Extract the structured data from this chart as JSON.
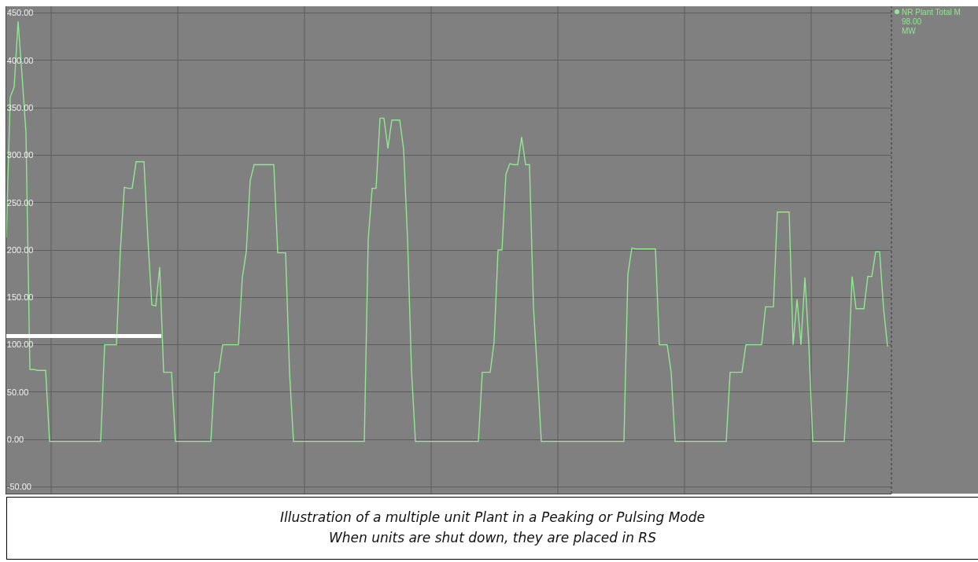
{
  "chart_data": {
    "type": "line",
    "annotations": [
      "98.00",
      "MW",
      "Illustration of a multiple unit Plant in a Peaking or Pulsing Mode",
      "When units are shut down, they are placed in RS"
    ],
    "categories": [
      null,
      null,
      null,
      null,
      null,
      null,
      null,
      null,
      null,
      null,
      null,
      null,
      null,
      null,
      null,
      null,
      null,
      null,
      null,
      null,
      null,
      null,
      null,
      null,
      null,
      null,
      null,
      null,
      null,
      null,
      null,
      null,
      null,
      null,
      null,
      null,
      null,
      null,
      null,
      null,
      null,
      null,
      null,
      null,
      null,
      null,
      null,
      null,
      null,
      null,
      null,
      null,
      null,
      null,
      null,
      null,
      null,
      null,
      null,
      null,
      null,
      null,
      null,
      null,
      null,
      null,
      null,
      null,
      null,
      null,
      null,
      null,
      null,
      null,
      null,
      null,
      null,
      null,
      null,
      null,
      null,
      null,
      null,
      null,
      null,
      null,
      null,
      null,
      null,
      null,
      null,
      null,
      null,
      null,
      null,
      null,
      null,
      null,
      null,
      null,
      null,
      null,
      null,
      null,
      null,
      null,
      null,
      null,
      null,
      null,
      null,
      null,
      null,
      null,
      null,
      null,
      null,
      null,
      null,
      null,
      null,
      null,
      null,
      null,
      null,
      null,
      null,
      null,
      null,
      null,
      null,
      null,
      null,
      null,
      null,
      null,
      null,
      null,
      null,
      null,
      null,
      null,
      null,
      null,
      null,
      null,
      null,
      null,
      null,
      null,
      null,
      null,
      null,
      null,
      null,
      null,
      null,
      null,
      null,
      null,
      null,
      null,
      null,
      null,
      null,
      null,
      null,
      null,
      null,
      null,
      null,
      null,
      null,
      null,
      null,
      null,
      null,
      null,
      null,
      null,
      null,
      null,
      null,
      null,
      null,
      null,
      null,
      null,
      null,
      null,
      null,
      null,
      null,
      null,
      null,
      null,
      null,
      null,
      null,
      null,
      null,
      null,
      null,
      null,
      null,
      null,
      null,
      null,
      null,
      null,
      null,
      null,
      null,
      null,
      null,
      null,
      null,
      null,
      null,
      null,
      null,
      null,
      null,
      null,
      null
    ],
    "series": [
      {
        "name": "NR Plant Total M",
        "color": "#90e890",
        "values": [
          213,
          361,
          372,
          441,
          384,
          324,
          74,
          74,
          73,
          73,
          73,
          -2,
          -2,
          -2,
          -2,
          -2,
          -2,
          -2,
          -2,
          -2,
          -2,
          -2,
          -2,
          -2,
          -2,
          100,
          100,
          100,
          100,
          200,
          266,
          265,
          265,
          293,
          293,
          293,
          211,
          142,
          141,
          182,
          71,
          71,
          71,
          -2,
          -2,
          -2,
          -2,
          -2,
          -2,
          -2,
          -2,
          -2,
          -2,
          71,
          71,
          100,
          100,
          100,
          100,
          100,
          171,
          198,
          273,
          290,
          290,
          290,
          290,
          290,
          290,
          197,
          197,
          197,
          71,
          -2,
          -2,
          -2,
          -2,
          -2,
          -2,
          -2,
          -2,
          -2,
          -2,
          -2,
          -2,
          -2,
          -2,
          -2,
          -2,
          -2,
          -2,
          -2,
          211,
          265,
          265,
          339,
          339,
          307,
          337,
          337,
          337,
          306,
          211,
          73,
          -2,
          -2,
          -2,
          -2,
          -2,
          -2,
          -2,
          -2,
          -2,
          -2,
          -2,
          -2,
          -2,
          -2,
          -2,
          -2,
          -2,
          71,
          71,
          71,
          103,
          200,
          200,
          280,
          291,
          290,
          290,
          319,
          290,
          290,
          140,
          71,
          -2,
          -2,
          -2,
          -2,
          -2,
          -2,
          -2,
          -2,
          -2,
          -2,
          -2,
          -2,
          -2,
          -2,
          -2,
          -2,
          -2,
          -2,
          -2,
          -2,
          -2,
          -2,
          174,
          202,
          201,
          201,
          201,
          201,
          201,
          201,
          100,
          100,
          100,
          71,
          -2,
          -2,
          -2,
          -2,
          -2,
          -2,
          -2,
          -2,
          -2,
          -2,
          -2,
          -2,
          -2,
          -2,
          71,
          71,
          71,
          71,
          100,
          100,
          100,
          100,
          100,
          140,
          140,
          140,
          240,
          240,
          240,
          240,
          100,
          148,
          100,
          171,
          100,
          -2,
          -2,
          -2,
          -2,
          -2,
          -2,
          -2,
          -2,
          -2,
          71,
          172,
          138,
          138,
          138,
          172,
          172,
          198,
          198,
          138,
          98
        ]
      }
    ],
    "ylim": [
      -57,
      457
    ],
    "yticks": [
      {
        "value": -50,
        "label": "-50.00"
      },
      {
        "value": 0,
        "label": "0.00"
      },
      {
        "value": 50,
        "label": "50.00"
      },
      {
        "value": 100,
        "label": "100.00"
      },
      {
        "value": 150,
        "label": "150.00"
      },
      {
        "value": 200,
        "label": "200.00"
      },
      {
        "value": 250,
        "label": "250.00"
      },
      {
        "value": 300,
        "label": "300.00"
      },
      {
        "value": 350,
        "label": "350.00"
      },
      {
        "value": 400,
        "label": "400.00"
      },
      {
        "value": 450,
        "label": "450.00"
      }
    ],
    "grid": true,
    "legend": "top right",
    "tick_labels": "y",
    "line_style": "solid"
  }
}
